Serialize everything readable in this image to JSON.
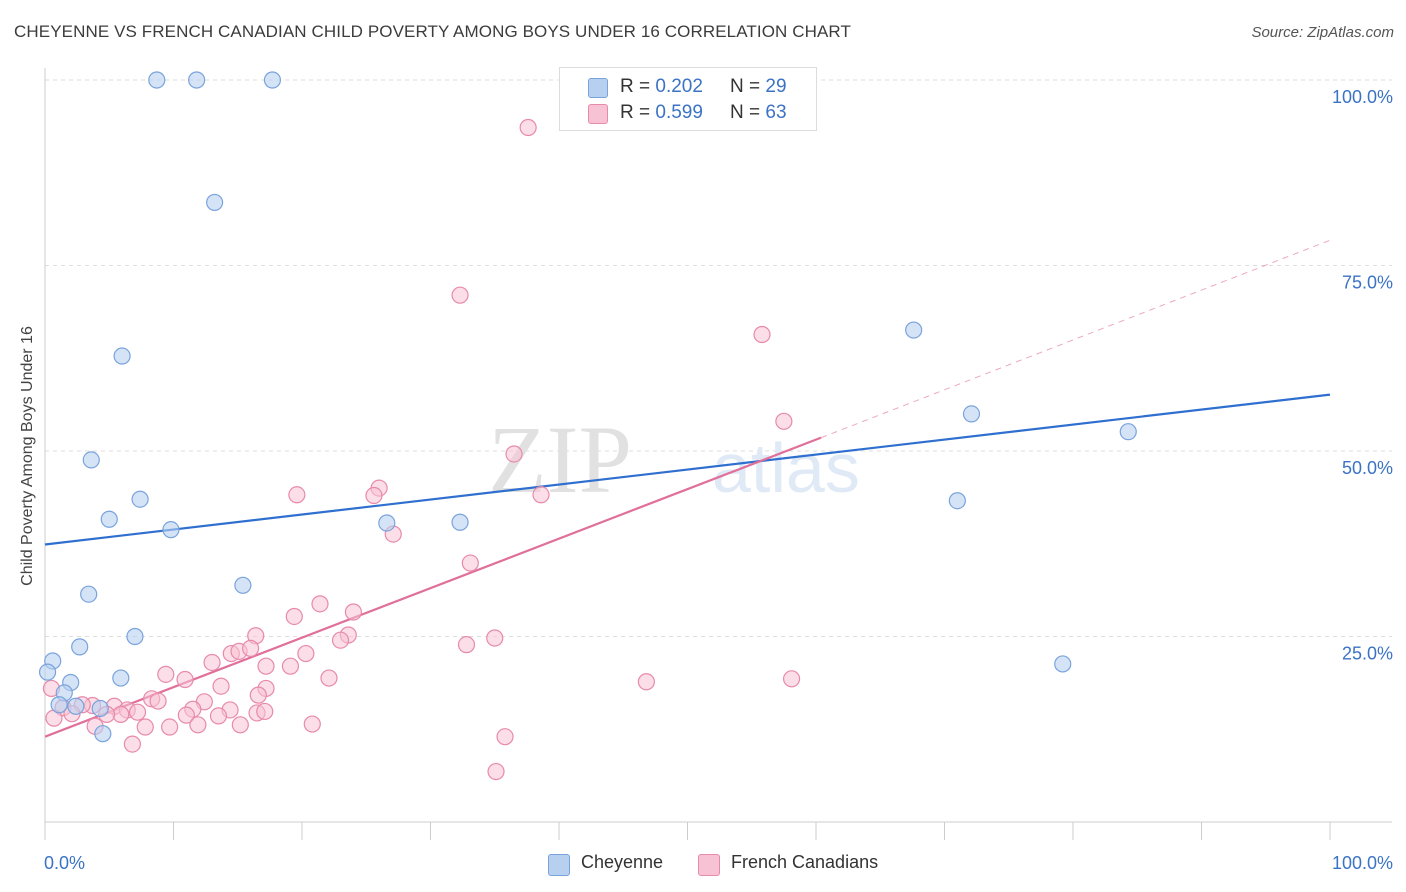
{
  "title": "CHEYENNE VS FRENCH CANADIAN CHILD POVERTY AMONG BOYS UNDER 16 CORRELATION CHART",
  "source": "Source: ZipAtlas.com",
  "watermark": {
    "part1": "ZIP",
    "part2": "atlas"
  },
  "colors": {
    "cheyenne_fill": "#b7d0f0",
    "cheyenne_stroke": "#7aa3dc",
    "cheyenne_line": "#2f6fcf",
    "french_fill": "#f7c2d3",
    "french_stroke": "#e88aab",
    "french_line": "#e0709a",
    "axis_text": "#3b73c4",
    "grid": "#dddddd"
  },
  "legend": {
    "rows": [
      {
        "r_label": "R = ",
        "r_value": "0.202",
        "n_label": "N = ",
        "n_value": "29"
      },
      {
        "r_label": "R = ",
        "r_value": "0.599",
        "n_label": "N = ",
        "n_value": "63"
      }
    ]
  },
  "chart_data": {
    "type": "scatter",
    "title": "CHEYENNE VS FRENCH CANADIAN CHILD POVERTY AMONG BOYS UNDER 16 CORRELATION CHART",
    "xlabel": "",
    "ylabel": "Child Poverty Among Boys Under 16",
    "xlim": [
      0,
      100
    ],
    "ylim": [
      0,
      100
    ],
    "x_tick_labels": [
      "0.0%",
      "100.0%"
    ],
    "y_tick_labels": [
      "25.0%",
      "50.0%",
      "75.0%",
      "100.0%"
    ],
    "y_ticks": [
      25,
      50,
      75,
      100
    ],
    "grid": true,
    "legend_position": "top-center",
    "series": [
      {
        "name": "Cheyenne",
        "points": [
          [
            8.7,
            100
          ],
          [
            11.8,
            100
          ],
          [
            17.7,
            100
          ],
          [
            13.2,
            83.5
          ],
          [
            6.0,
            62.8
          ],
          [
            3.6,
            48.8
          ],
          [
            7.4,
            43.5
          ],
          [
            5.0,
            40.8
          ],
          [
            9.8,
            39.4
          ],
          [
            3.4,
            30.7
          ],
          [
            15.4,
            31.9
          ],
          [
            26.6,
            40.3
          ],
          [
            32.3,
            40.4
          ],
          [
            7.0,
            25.0
          ],
          [
            2.7,
            23.6
          ],
          [
            0.6,
            21.7
          ],
          [
            0.2,
            20.2
          ],
          [
            5.9,
            19.4
          ],
          [
            2.0,
            18.8
          ],
          [
            1.5,
            17.4
          ],
          [
            1.1,
            15.8
          ],
          [
            2.4,
            15.6
          ],
          [
            4.3,
            15.3
          ],
          [
            4.5,
            11.9
          ],
          [
            67.6,
            66.3
          ],
          [
            72.1,
            55.0
          ],
          [
            84.3,
            52.6
          ],
          [
            71.0,
            43.3
          ],
          [
            79.2,
            21.3
          ]
        ],
        "trend": {
          "x": [
            0,
            100
          ],
          "y": [
            37.4,
            57.6
          ]
        }
      },
      {
        "name": "French Canadians",
        "points": [
          [
            37.6,
            93.6
          ],
          [
            32.3,
            71.0
          ],
          [
            55.8,
            65.7
          ],
          [
            57.5,
            54.0
          ],
          [
            36.5,
            49.6
          ],
          [
            26.0,
            45.0
          ],
          [
            25.6,
            44.0
          ],
          [
            19.6,
            44.1
          ],
          [
            38.6,
            44.1
          ],
          [
            27.1,
            38.8
          ],
          [
            33.1,
            34.9
          ],
          [
            21.4,
            29.4
          ],
          [
            19.4,
            27.7
          ],
          [
            24.0,
            28.3
          ],
          [
            16.4,
            25.1
          ],
          [
            23.6,
            25.2
          ],
          [
            35.0,
            24.8
          ],
          [
            23.0,
            24.5
          ],
          [
            32.8,
            23.9
          ],
          [
            14.5,
            22.7
          ],
          [
            15.1,
            23.0
          ],
          [
            16.0,
            23.4
          ],
          [
            20.3,
            22.7
          ],
          [
            13.0,
            21.5
          ],
          [
            17.2,
            21.0
          ],
          [
            19.1,
            21.0
          ],
          [
            9.4,
            19.9
          ],
          [
            10.9,
            19.2
          ],
          [
            22.1,
            19.4
          ],
          [
            46.8,
            18.9
          ],
          [
            58.1,
            19.3
          ],
          [
            17.2,
            18.0
          ],
          [
            13.7,
            18.3
          ],
          [
            8.3,
            16.6
          ],
          [
            16.6,
            17.1
          ],
          [
            12.4,
            16.2
          ],
          [
            8.8,
            16.3
          ],
          [
            11.5,
            15.2
          ],
          [
            5.4,
            15.6
          ],
          [
            3.7,
            15.7
          ],
          [
            2.9,
            15.8
          ],
          [
            1.4,
            15.4
          ],
          [
            6.4,
            15.1
          ],
          [
            7.2,
            14.8
          ],
          [
            5.9,
            14.5
          ],
          [
            2.1,
            14.6
          ],
          [
            0.5,
            18.0
          ],
          [
            0.7,
            14.0
          ],
          [
            11.0,
            14.4
          ],
          [
            14.4,
            15.1
          ],
          [
            16.5,
            14.7
          ],
          [
            4.8,
            14.5
          ],
          [
            3.9,
            12.9
          ],
          [
            7.8,
            12.8
          ],
          [
            9.7,
            12.8
          ],
          [
            11.9,
            13.1
          ],
          [
            15.2,
            13.1
          ],
          [
            20.8,
            13.2
          ],
          [
            17.1,
            14.9
          ],
          [
            35.8,
            11.5
          ],
          [
            13.5,
            14.3
          ],
          [
            6.8,
            10.5
          ],
          [
            35.1,
            6.8
          ]
        ],
        "trend": {
          "x": [
            0,
            60.4
          ],
          "y": [
            11.5,
            51.8
          ]
        },
        "trend_dashed": {
          "x": [
            60.4,
            100
          ],
          "y": [
            51.8,
            78.4
          ]
        }
      }
    ]
  },
  "bottom_legend": {
    "items": [
      {
        "label": "Cheyenne"
      },
      {
        "label": "French Canadians"
      }
    ]
  }
}
